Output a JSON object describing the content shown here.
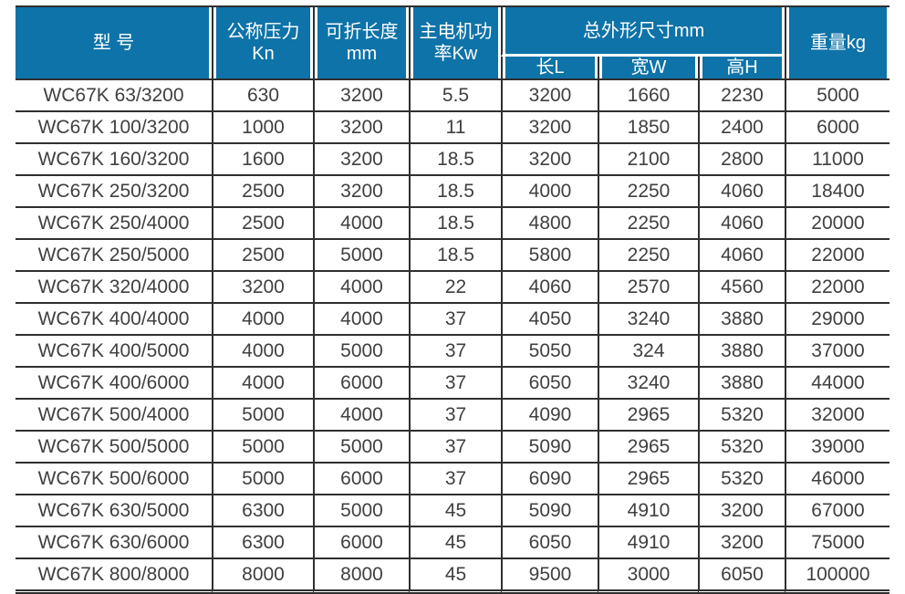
{
  "colors": {
    "header_bg": "#0e73a8",
    "header_text": "#ffffff",
    "body_text": "#404040",
    "border_dark": "#2f2f2f"
  },
  "table": {
    "header": {
      "model": "型 号",
      "pressure_cn": "公称压力",
      "pressure_unit": "Kn",
      "fold_cn": "可折长度",
      "fold_unit": "mm",
      "power_line1": "主电机功",
      "power_line2": "率Kw",
      "dims_group": "总外形尺寸mm",
      "dim_l": "长L",
      "dim_w": "宽W",
      "dim_h": "高H",
      "weight": "重量kg"
    },
    "rows": [
      [
        "WC67K 63/3200",
        "630",
        "3200",
        "5.5",
        "3200",
        "1660",
        "2230",
        "5000"
      ],
      [
        "WC67K 100/3200",
        "1000",
        "3200",
        "11",
        "3200",
        "1850",
        "2400",
        "6000"
      ],
      [
        "WC67K 160/3200",
        "1600",
        "3200",
        "18.5",
        "3200",
        "2100",
        "2800",
        "11000"
      ],
      [
        "WC67K 250/3200",
        "2500",
        "3200",
        "18.5",
        "4000",
        "2250",
        "4060",
        "18400"
      ],
      [
        "WC67K 250/4000",
        "2500",
        "4000",
        "18.5",
        "4800",
        "2250",
        "4060",
        "20000"
      ],
      [
        "WC67K 250/5000",
        "2500",
        "5000",
        "18.5",
        "5800",
        "2250",
        "4060",
        "22000"
      ],
      [
        "WC67K 320/4000",
        "3200",
        "4000",
        "22",
        "4060",
        "2570",
        "4560",
        "22000"
      ],
      [
        "WC67K 400/4000",
        "4000",
        "4000",
        "37",
        "4050",
        "3240",
        "3880",
        "29000"
      ],
      [
        "WC67K 400/5000",
        "4000",
        "5000",
        "37",
        "5050",
        "324",
        "3880",
        "37000"
      ],
      [
        "WC67K 400/6000",
        "4000",
        "6000",
        "37",
        "6050",
        "3240",
        "3880",
        "44000"
      ],
      [
        "WC67K 500/4000",
        "5000",
        "4000",
        "37",
        "4090",
        "2965",
        "5320",
        "32000"
      ],
      [
        "WC67K 500/5000",
        "5000",
        "5000",
        "37",
        "5090",
        "2965",
        "5320",
        "39000"
      ],
      [
        "WC67K 500/6000",
        "5000",
        "6000",
        "37",
        "6090",
        "2965",
        "5320",
        "46000"
      ],
      [
        "WC67K 630/5000",
        "6300",
        "5000",
        "45",
        "5090",
        "4910",
        "3200",
        "67000"
      ],
      [
        "WC67K 630/6000",
        "6300",
        "6000",
        "45",
        "6050",
        "4910",
        "3200",
        "75000"
      ],
      [
        "WC67K 800/8000",
        "8000",
        "8000",
        "45",
        "9500",
        "3000",
        "6050",
        "100000"
      ]
    ]
  }
}
